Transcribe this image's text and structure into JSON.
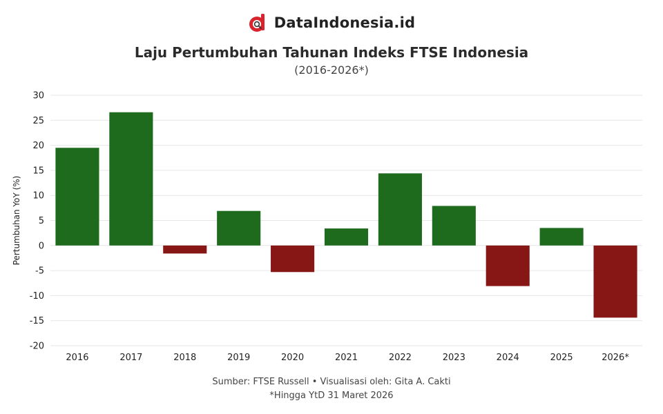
{
  "brand": {
    "name": "DataIndonesia.id",
    "logo_icon": "d-magnifier-logo-icon",
    "logo_color": "#d9232d"
  },
  "chart_data": {
    "type": "bar",
    "title": "Laju Pertumbuhan Tahunan Indeks FTSE Indonesia",
    "subtitle": "(2016-2026*)",
    "categories": [
      "2016",
      "2017",
      "2018",
      "2019",
      "2020",
      "2021",
      "2022",
      "2023",
      "2024",
      "2025",
      "2026*"
    ],
    "values": [
      19.5,
      26.6,
      -1.6,
      6.9,
      -5.3,
      3.4,
      14.4,
      7.9,
      -8.1,
      3.5,
      -14.4
    ],
    "ylabel": "Pertumbuhan YoY (%)",
    "xlabel": "",
    "ylim": [
      -20,
      30
    ],
    "yticks": [
      "30",
      "25",
      "20",
      "15",
      "10",
      "5",
      "0",
      "-5",
      "-10",
      "-15",
      "-20"
    ],
    "grid": true,
    "legend": "none",
    "colors": {
      "positive": "#1e6b1e",
      "negative": "#871714",
      "grid": "#e6e6e6"
    }
  },
  "footer": {
    "source": "Sumber: FTSE Russell • Visualisasi oleh: Gita A. Cakti",
    "note": "*Hingga YtD 31 Maret 2026"
  }
}
